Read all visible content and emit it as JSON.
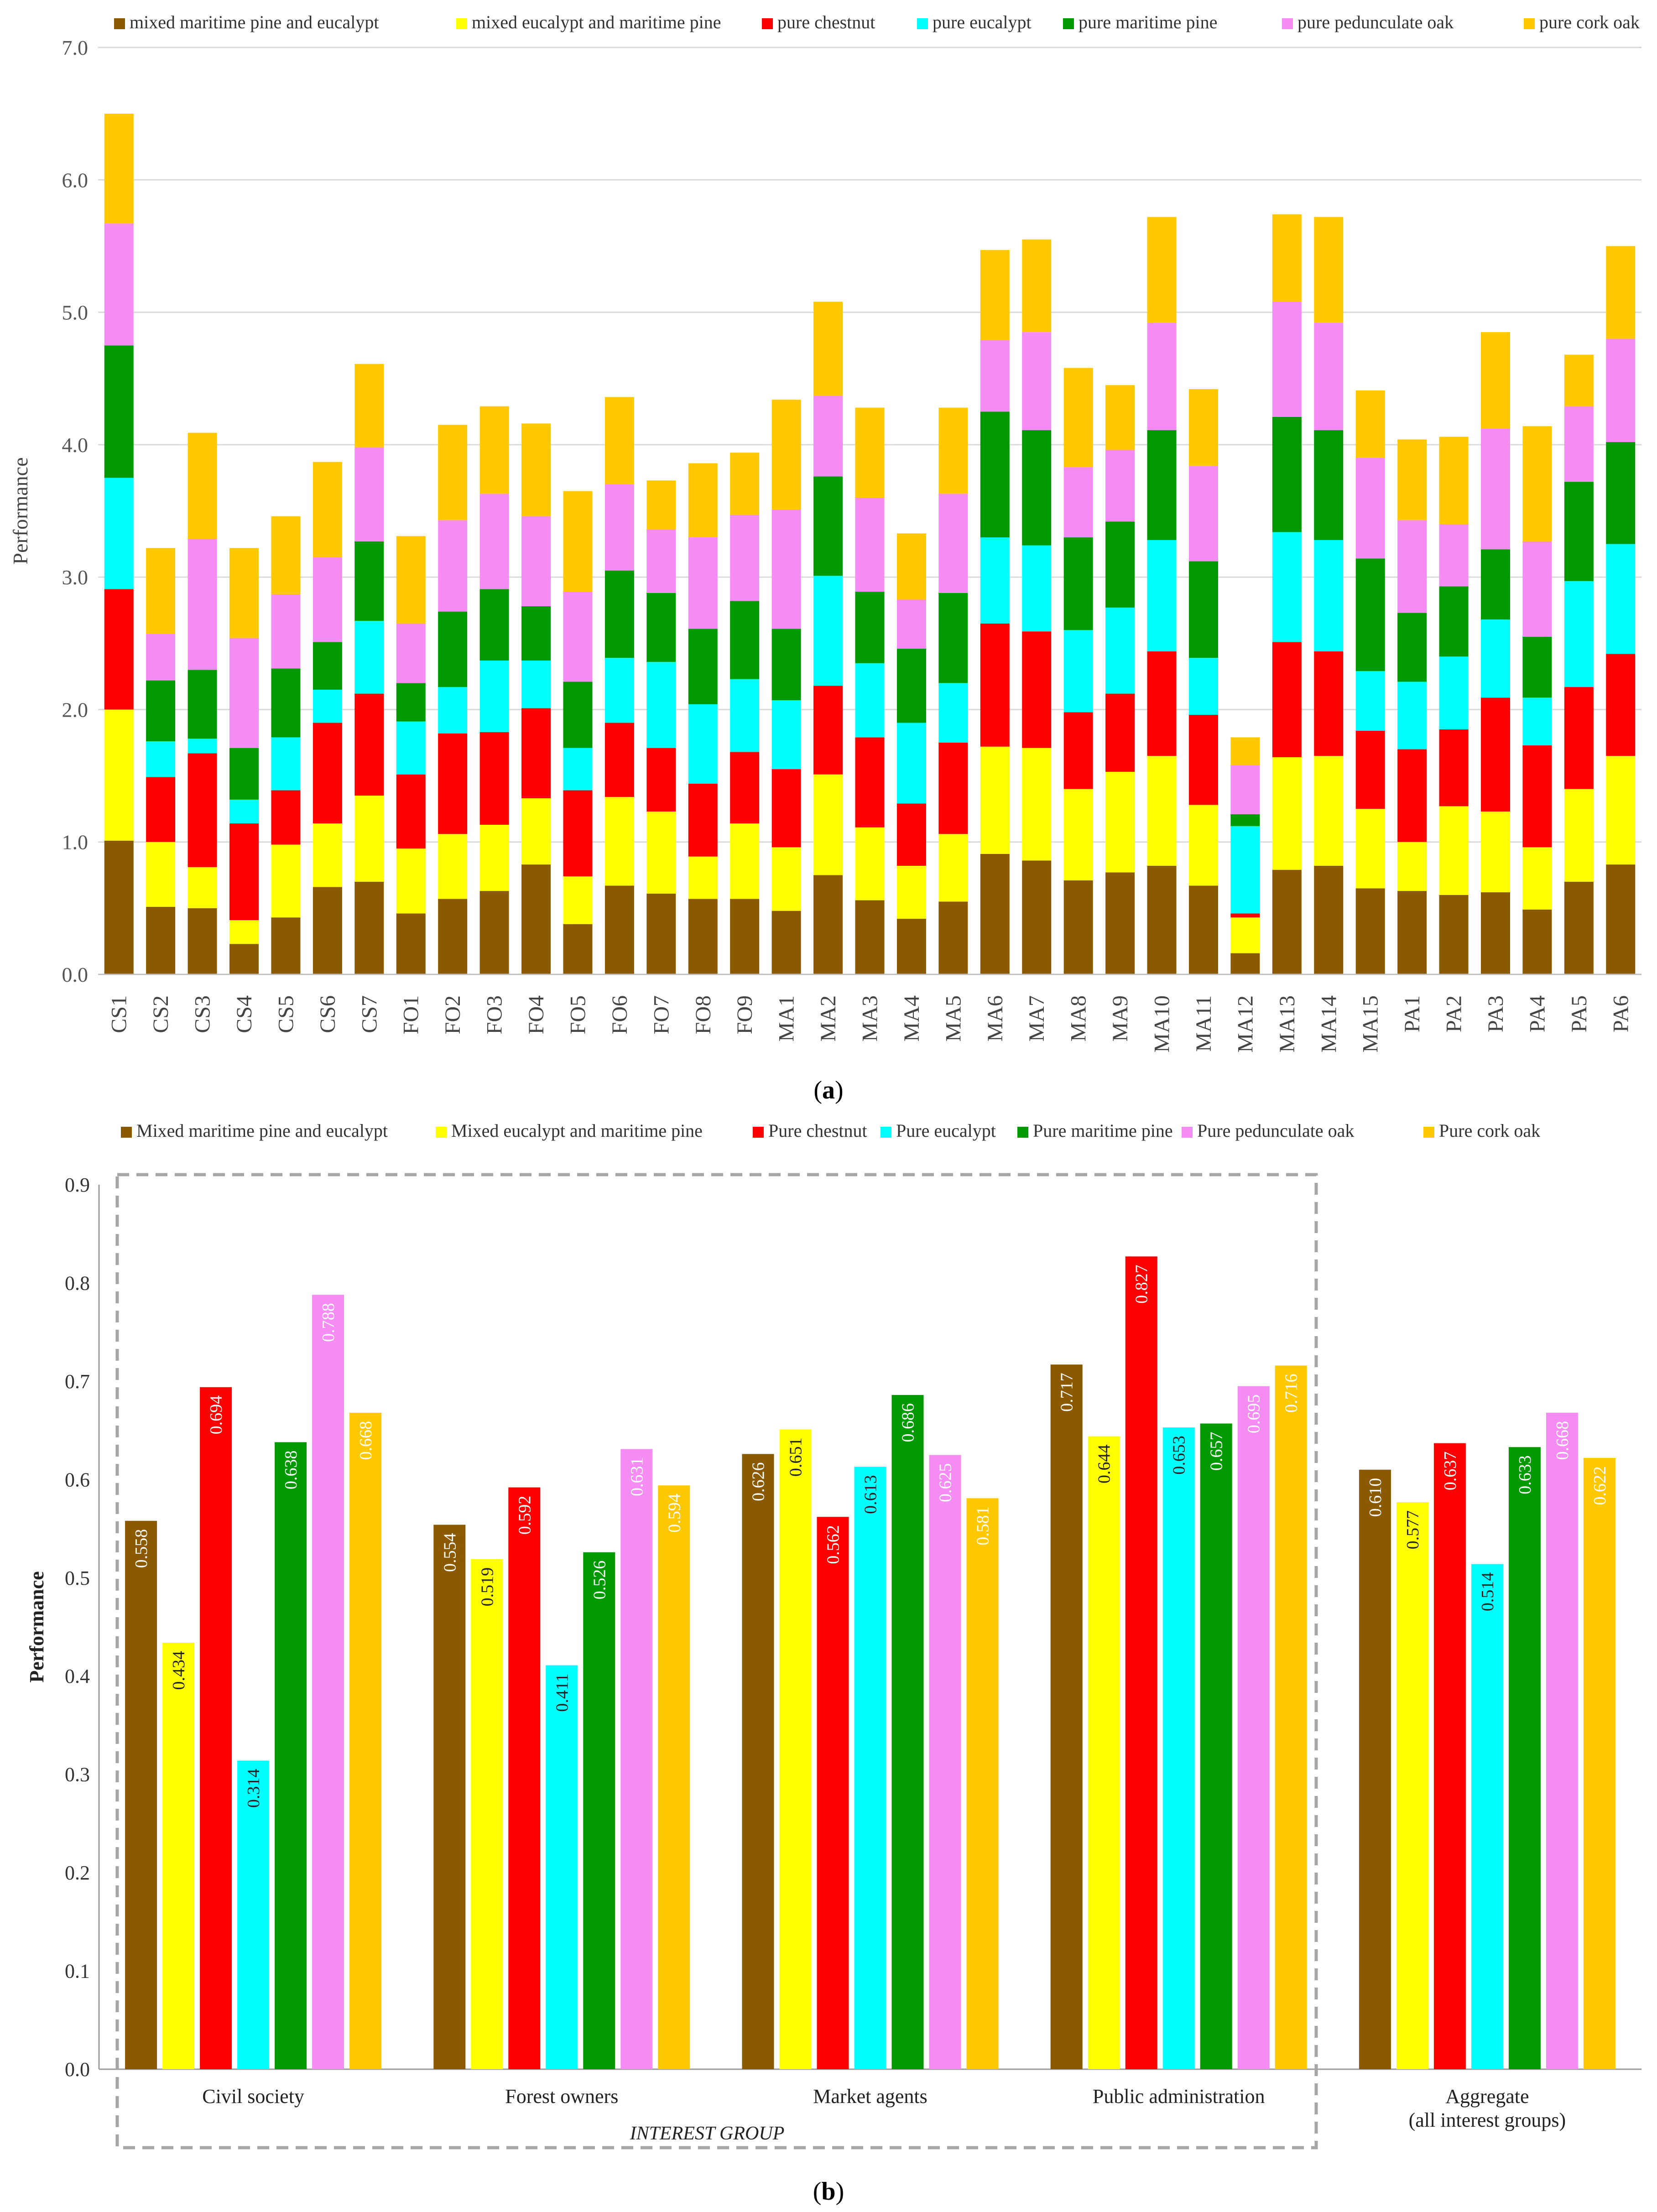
{
  "chart_data": [
    {
      "type": "bar",
      "stacked": true,
      "panel_label": "a",
      "title": "",
      "xlabel": "",
      "ylabel": "Performance",
      "ylim": [
        0,
        7
      ],
      "yticks": [
        "0.0",
        "1.0",
        "2.0",
        "3.0",
        "4.0",
        "5.0",
        "6.0",
        "7.0"
      ],
      "grid": true,
      "legend": "top",
      "categories": [
        "CS1",
        "CS2",
        "CS3",
        "CS4",
        "CS5",
        "CS6",
        "CS7",
        "FO1",
        "FO2",
        "FO3",
        "FO4",
        "FO5",
        "FO6",
        "FO7",
        "FO8",
        "FO9",
        "MA1",
        "MA2",
        "MA3",
        "MA4",
        "MA5",
        "MA6",
        "MA7",
        "MA8",
        "MA9",
        "MA10",
        "MA11",
        "MA12",
        "MA13",
        "MA14",
        "MA15",
        "PA1",
        "PA2",
        "PA3",
        "PA4",
        "PA5",
        "PA6"
      ],
      "series": [
        {
          "name": "mixed maritime pine and eucalypt",
          "color": "#8B5A00",
          "values": [
            1.01,
            0.51,
            0.5,
            0.23,
            0.43,
            0.66,
            0.7,
            0.46,
            0.57,
            0.63,
            0.83,
            0.38,
            0.67,
            0.61,
            0.57,
            0.57,
            0.48,
            0.75,
            0.56,
            0.42,
            0.55,
            0.91,
            0.86,
            0.71,
            0.77,
            0.82,
            0.67,
            0.16,
            0.79,
            0.82,
            0.65,
            0.63,
            0.6,
            0.62,
            0.49,
            0.7,
            0.83
          ]
        },
        {
          "name": "mixed eucalypt and maritime pine",
          "color": "#FFFF00",
          "values": [
            0.99,
            0.49,
            0.31,
            0.18,
            0.55,
            0.48,
            0.65,
            0.49,
            0.49,
            0.5,
            0.5,
            0.36,
            0.67,
            0.62,
            0.32,
            0.57,
            0.48,
            0.76,
            0.55,
            0.4,
            0.51,
            0.81,
            0.85,
            0.69,
            0.76,
            0.83,
            0.61,
            0.27,
            0.85,
            0.83,
            0.6,
            0.37,
            0.67,
            0.61,
            0.47,
            0.7,
            0.82
          ]
        },
        {
          "name": "pure chestnut",
          "color": "#FF0000",
          "values": [
            0.91,
            0.49,
            0.86,
            0.73,
            0.41,
            0.76,
            0.77,
            0.56,
            0.76,
            0.7,
            0.68,
            0.65,
            0.56,
            0.48,
            0.55,
            0.54,
            0.59,
            0.67,
            0.68,
            0.47,
            0.69,
            0.93,
            0.88,
            0.58,
            0.59,
            0.79,
            0.68,
            0.03,
            0.87,
            0.79,
            0.59,
            0.7,
            0.58,
            0.86,
            0.77,
            0.77,
            0.77
          ]
        },
        {
          "name": "pure eucalypt",
          "color": "#00FFFF",
          "values": [
            0.84,
            0.27,
            0.11,
            0.18,
            0.4,
            0.25,
            0.55,
            0.4,
            0.35,
            0.54,
            0.36,
            0.32,
            0.49,
            0.65,
            0.6,
            0.55,
            0.52,
            0.83,
            0.56,
            0.61,
            0.45,
            0.65,
            0.65,
            0.62,
            0.65,
            0.84,
            0.43,
            0.66,
            0.83,
            0.84,
            0.45,
            0.51,
            0.55,
            0.59,
            0.36,
            0.8,
            0.83
          ]
        },
        {
          "name": "pure maritime pine",
          "color": "#009900",
          "values": [
            1.0,
            0.46,
            0.52,
            0.39,
            0.52,
            0.36,
            0.6,
            0.29,
            0.57,
            0.54,
            0.41,
            0.5,
            0.66,
            0.52,
            0.57,
            0.59,
            0.54,
            0.75,
            0.54,
            0.56,
            0.68,
            0.95,
            0.87,
            0.7,
            0.65,
            0.83,
            0.73,
            0.09,
            0.87,
            0.83,
            0.85,
            0.52,
            0.53,
            0.53,
            0.46,
            0.75,
            0.77
          ]
        },
        {
          "name": "pure pedunculate oak",
          "color": "#F48CF4",
          "values": [
            0.92,
            0.35,
            0.99,
            0.83,
            0.56,
            0.64,
            0.71,
            0.45,
            0.69,
            0.72,
            0.68,
            0.68,
            0.65,
            0.48,
            0.69,
            0.65,
            0.9,
            0.61,
            0.71,
            0.37,
            0.75,
            0.54,
            0.74,
            0.53,
            0.54,
            0.81,
            0.72,
            0.37,
            0.87,
            0.81,
            0.76,
            0.7,
            0.47,
            0.91,
            0.72,
            0.57,
            0.78
          ]
        },
        {
          "name": "pure cork oak",
          "color": "#FFC800",
          "values": [
            0.83,
            0.65,
            0.8,
            0.68,
            0.59,
            0.72,
            0.63,
            0.66,
            0.72,
            0.66,
            0.7,
            0.76,
            0.66,
            0.37,
            0.56,
            0.47,
            0.83,
            0.71,
            0.68,
            0.5,
            0.65,
            0.68,
            0.7,
            0.75,
            0.49,
            0.8,
            0.58,
            0.21,
            0.66,
            0.8,
            0.51,
            0.61,
            0.66,
            0.73,
            0.87,
            0.39,
            0.7
          ]
        }
      ]
    },
    {
      "type": "bar",
      "stacked": false,
      "panel_label": "b",
      "title": "",
      "xlabel": "INTEREST GROUP",
      "ylabel": "Performance",
      "ylim": [
        0,
        0.9
      ],
      "yticks": [
        "0.0",
        "0.1",
        "0.2",
        "0.3",
        "0.4",
        "0.5",
        "0.6",
        "0.7",
        "0.8",
        "0.9"
      ],
      "grid": false,
      "legend": "top",
      "categories": [
        "Civil society",
        "Forest owners",
        "Market agents",
        "Public administration",
        "Aggregate\n(all interest groups)"
      ],
      "series": [
        {
          "name": "Mixed maritime pine and eucalypt",
          "color": "#8B5A00",
          "values": [
            0.558,
            0.554,
            0.626,
            0.717,
            0.61
          ],
          "labels": [
            "0.558",
            "0.554",
            "0.626",
            "0.717",
            "0.610"
          ]
        },
        {
          "name": "Mixed eucalypt and maritime pine",
          "color": "#FFFF00",
          "values": [
            0.434,
            0.519,
            0.651,
            0.644,
            0.577
          ],
          "labels": [
            "0.434",
            "0.519",
            "0.651",
            "0.644",
            "0.577"
          ]
        },
        {
          "name": "Pure chestnut",
          "color": "#FF0000",
          "values": [
            0.694,
            0.592,
            0.562,
            0.827,
            0.637
          ],
          "labels": [
            "0.694",
            "0.592",
            "0.562",
            "0.827",
            "0.637"
          ]
        },
        {
          "name": "Pure eucalypt",
          "color": "#00FFFF",
          "values": [
            0.314,
            0.411,
            0.613,
            0.653,
            0.514
          ],
          "labels": [
            "0.314",
            "0.411",
            "0.613",
            "0.653",
            "0.514"
          ]
        },
        {
          "name": "Pure maritime pine",
          "color": "#009900",
          "values": [
            0.638,
            0.526,
            0.686,
            0.657,
            0.633
          ],
          "labels": [
            "0.638",
            "0.526",
            "0.686",
            "0.657",
            "0.633"
          ]
        },
        {
          "name": "Pure pedunculate oak",
          "color": "#F48CF4",
          "values": [
            0.788,
            0.631,
            0.625,
            0.695,
            0.668
          ],
          "labels": [
            "0.788",
            "0.631",
            "0.625",
            "0.695",
            "0.668"
          ]
        },
        {
          "name": "Pure cork oak",
          "color": "#FFC800",
          "values": [
            0.668,
            0.594,
            0.581,
            0.716,
            0.622
          ],
          "labels": [
            "0.668",
            "0.594",
            "0.581",
            "0.716",
            "0.622"
          ]
        }
      ]
    }
  ]
}
